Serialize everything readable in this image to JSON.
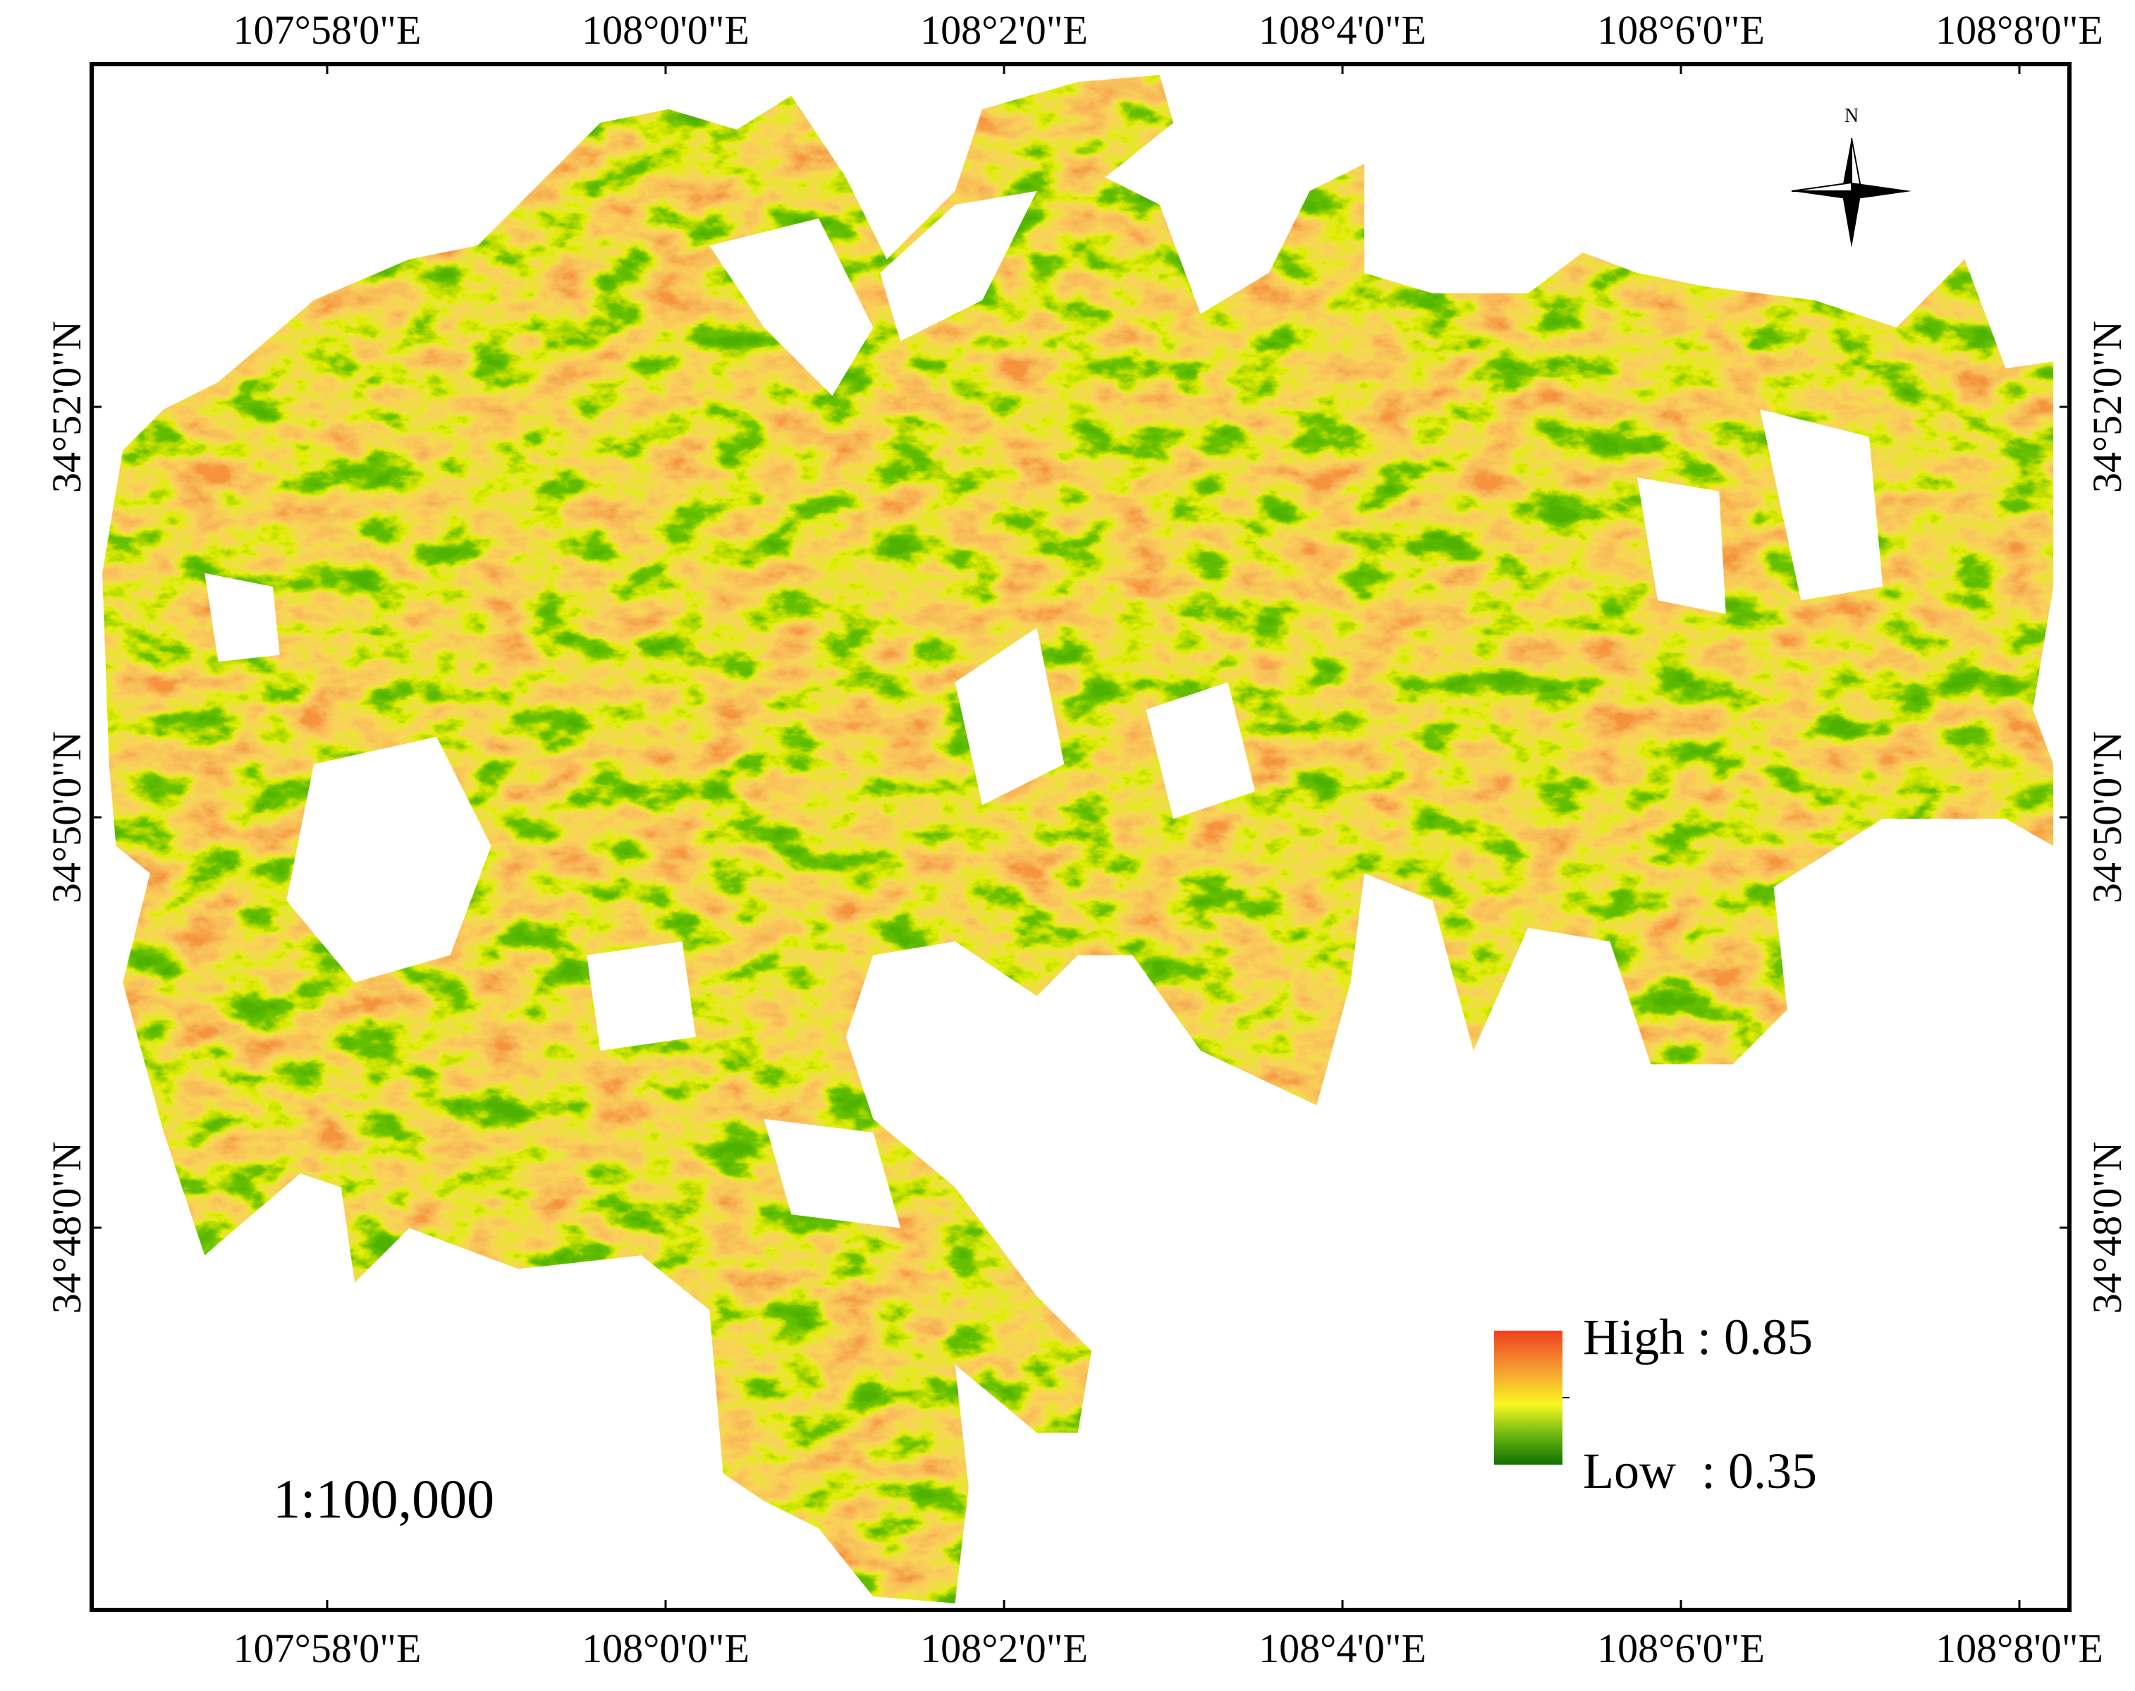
{
  "map": {
    "longitude_labels": [
      "107°58'0\"E",
      "108°0'0\"E",
      "108°2'0\"E",
      "108°4'0\"E",
      "108°6'0\"E",
      "108°8'0\"E"
    ],
    "latitude_labels": [
      "34°52'0\"N",
      "34°50'0\"N",
      "34°48'0\"N"
    ],
    "north_label": "N",
    "scale": "1:100,000",
    "legend": {
      "high_label": "High : 0.85",
      "low_label": "Low  : 0.35"
    }
  }
}
